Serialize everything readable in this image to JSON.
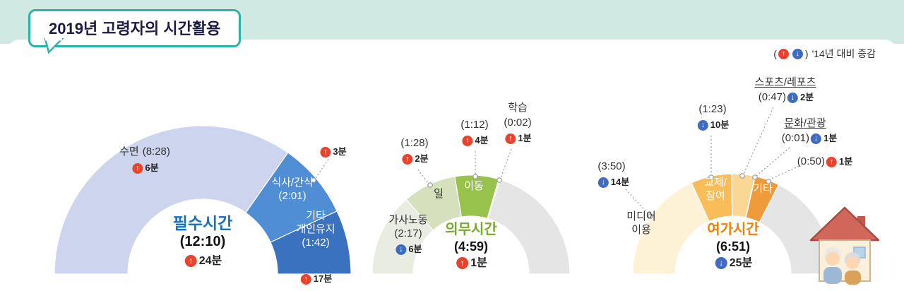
{
  "title": "2019년 고령자의 시간활용",
  "note": {
    "open_paren": "(",
    "close_paren": ")",
    "text": "'14년 대비 증감"
  },
  "icons": {
    "up": "↑",
    "down": "↓"
  },
  "colors": {
    "up_badge": "#e8432c",
    "down_badge": "#3f6cc0",
    "filler": "#e5e5e5",
    "band": "#d0eae3",
    "title_border": "#2bb3a6"
  },
  "chart_data": [
    {
      "type": "pie",
      "semicircle": true,
      "unit": "minutes",
      "name": "필수시간",
      "name_color": "#1773be",
      "time": "(12:10)",
      "total_minutes": 730,
      "delta": {
        "dir": "up",
        "text": "24분",
        "minutes": 24
      },
      "segments": [
        {
          "label": "수면",
          "time": "(8:28)",
          "minutes": 508,
          "color": "#cdd5ee",
          "delta": {
            "dir": "up",
            "text": "6분",
            "minutes": 6
          }
        },
        {
          "label": "식사/간식",
          "time": "(2:01)",
          "minutes": 121,
          "color": "#4f8ed4",
          "delta": {
            "dir": "up",
            "text": "3분",
            "minutes": 3
          }
        },
        {
          "label": "기타 개인유지",
          "label_line1": "기타",
          "label_line2": "개인유지",
          "time": "(1:42)",
          "minutes": 102,
          "color": "#3a72c0",
          "delta": {
            "dir": "up",
            "text": "17분",
            "minutes": 17
          }
        }
      ]
    },
    {
      "type": "pie",
      "semicircle": true,
      "unit": "minutes",
      "name": "의무시간",
      "name_color": "#79a82f",
      "time": "(4:59)",
      "total_minutes": 299,
      "delta": {
        "dir": "up",
        "text": "1분",
        "minutes": 1
      },
      "segments": [
        {
          "label": "가사노동",
          "time": "(2:17)",
          "minutes": 137,
          "color": "#e9ece0",
          "delta": {
            "dir": "down",
            "text": "6분",
            "minutes": 6
          }
        },
        {
          "label": "일",
          "time": "(1:28)",
          "minutes": 88,
          "color": "#d5e1bd",
          "delta": {
            "dir": "up",
            "text": "2분",
            "minutes": 2
          }
        },
        {
          "label": "이동",
          "time": "(1:12)",
          "minutes": 72,
          "color": "#97c24b",
          "delta": {
            "dir": "up",
            "text": "4분",
            "minutes": 4
          }
        },
        {
          "label": "학습",
          "time": "(0:02)",
          "minutes": 2,
          "color": "#bcd39a",
          "delta": {
            "dir": "up",
            "text": "1분",
            "minutes": 1
          }
        }
      ]
    },
    {
      "type": "pie",
      "semicircle": true,
      "unit": "minutes",
      "name": "여가시간",
      "name_color": "#ee8100",
      "time": "(6:51)",
      "total_minutes": 411,
      "delta": {
        "dir": "down",
        "text": "25분",
        "minutes": 25
      },
      "segments": [
        {
          "label": "미디어 이용",
          "label_line1": "미디어",
          "label_line2": "이용",
          "time": "(3:50)",
          "minutes": 230,
          "color": "#fdf1d6",
          "delta": {
            "dir": "down",
            "text": "14분",
            "minutes": 14
          }
        },
        {
          "label": "교제/참여",
          "label_line1": "교제/",
          "label_line2": "참여",
          "time": "(1:23)",
          "minutes": 83,
          "color": "#f8bd59",
          "delta": {
            "dir": "down",
            "text": "10분",
            "minutes": 10
          }
        },
        {
          "label": "스포츠/레포츠",
          "time": "(0:47)",
          "minutes": 47,
          "color": "#fbd795",
          "delta": {
            "dir": "down",
            "text": "2분",
            "minutes": 2
          }
        },
        {
          "label": "문화/관광",
          "time": "(0:01)",
          "minutes": 1,
          "color": "#fce8c0",
          "delta": {
            "dir": "down",
            "text": "1분",
            "minutes": 1
          }
        },
        {
          "label": "기타",
          "time": "(0:50)",
          "minutes": 50,
          "color": "#ef9a3b",
          "delta": {
            "dir": "up",
            "text": "1분",
            "minutes": 1
          }
        }
      ]
    }
  ]
}
